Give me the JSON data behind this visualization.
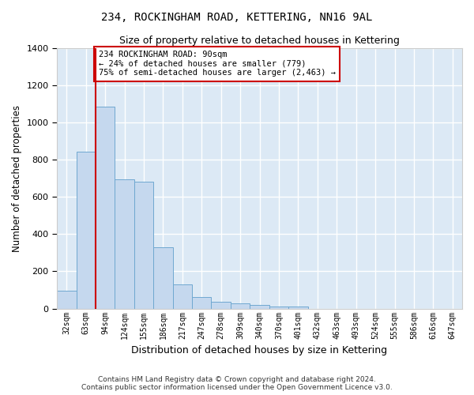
{
  "title": "234, ROCKINGHAM ROAD, KETTERING, NN16 9AL",
  "subtitle": "Size of property relative to detached houses in Kettering",
  "xlabel": "Distribution of detached houses by size in Kettering",
  "ylabel": "Number of detached properties",
  "bar_color": "#c5d8ee",
  "bar_edge_color": "#6fa8d0",
  "bg_color": "#dce9f5",
  "grid_color": "#ffffff",
  "categories": [
    "32sqm",
    "63sqm",
    "94sqm",
    "124sqm",
    "155sqm",
    "186sqm",
    "217sqm",
    "247sqm",
    "278sqm",
    "309sqm",
    "340sqm",
    "370sqm",
    "401sqm",
    "432sqm",
    "463sqm",
    "493sqm",
    "524sqm",
    "555sqm",
    "586sqm",
    "616sqm",
    "647sqm"
  ],
  "values": [
    97,
    843,
    1085,
    693,
    680,
    330,
    130,
    62,
    35,
    28,
    18,
    12,
    12,
    0,
    0,
    0,
    0,
    0,
    0,
    0,
    0
  ],
  "vline_color": "#cc0000",
  "annotation_text": "234 ROCKINGHAM ROAD: 90sqm\n← 24% of detached houses are smaller (779)\n75% of semi-detached houses are larger (2,463) →",
  "annotation_box_color": "#ffffff",
  "annotation_box_edge_color": "#cc0000",
  "footer_text": "Contains HM Land Registry data © Crown copyright and database right 2024.\nContains public sector information licensed under the Open Government Licence v3.0.",
  "ylim": [
    0,
    1400
  ],
  "yticks": [
    0,
    200,
    400,
    600,
    800,
    1000,
    1200,
    1400
  ]
}
